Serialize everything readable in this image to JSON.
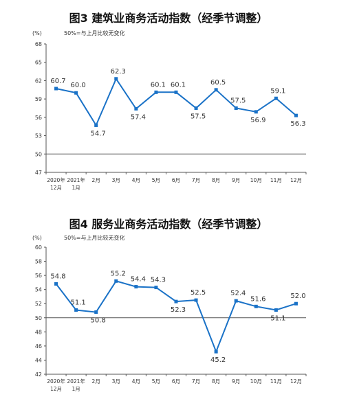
{
  "chart_data": [
    {
      "type": "line",
      "title": "图3  建筑业商务活动指数（经季节调整）",
      "unit_label": "(%)",
      "note": "50%=与上月比较无变化",
      "categories": [
        [
          "2020年",
          "12月"
        ],
        [
          "2021年",
          "1月"
        ],
        [
          "2月"
        ],
        [
          "3月"
        ],
        [
          "4月"
        ],
        [
          "5月"
        ],
        [
          "6月"
        ],
        [
          "7月"
        ],
        [
          "8月"
        ],
        [
          "9月"
        ],
        [
          "10月"
        ],
        [
          "11月"
        ],
        [
          "12月"
        ]
      ],
      "values": [
        60.7,
        60.0,
        54.7,
        62.3,
        57.4,
        60.1,
        60.1,
        57.5,
        60.5,
        57.5,
        56.9,
        59.1,
        56.3
      ],
      "value_labels": [
        "60.7",
        "60.0",
        "54.7",
        "62.3",
        "57.4",
        "60.1",
        "60.1",
        "57.5",
        "60.5",
        "57.5",
        "56.9",
        "59.1",
        "56.3"
      ],
      "yticks": [
        "47",
        "50",
        "53",
        "56",
        "59",
        "62",
        "65",
        "68"
      ],
      "ylim": [
        47,
        68
      ],
      "color": "#1a72c7"
    },
    {
      "type": "line",
      "title": "图4  服务业商务活动指数（经季节调整）",
      "unit_label": "(%)",
      "note": "50%=与上月比较无变化",
      "categories": [
        [
          "2020年",
          "12月"
        ],
        [
          "2021年",
          "1月"
        ],
        [
          "2月"
        ],
        [
          "3月"
        ],
        [
          "4月"
        ],
        [
          "5月"
        ],
        [
          "6月"
        ],
        [
          "7月"
        ],
        [
          "8月"
        ],
        [
          "9月"
        ],
        [
          "10月"
        ],
        [
          "11月"
        ],
        [
          "12月"
        ]
      ],
      "values": [
        54.8,
        51.1,
        50.8,
        55.2,
        54.4,
        54.3,
        52.3,
        52.5,
        45.2,
        52.4,
        51.6,
        51.1,
        52.0
      ],
      "value_labels": [
        "54.8",
        "51.1",
        "50.8",
        "55.2",
        "54.4",
        "54.3",
        "52.3",
        "52.5",
        "45.2",
        "52.4",
        "51.6",
        "51.1",
        "52.0"
      ],
      "yticks": [
        "42",
        "44",
        "46",
        "48",
        "50",
        "52",
        "54",
        "56",
        "58",
        "60"
      ],
      "ylim": [
        42,
        60
      ],
      "color": "#1a72c7"
    }
  ]
}
